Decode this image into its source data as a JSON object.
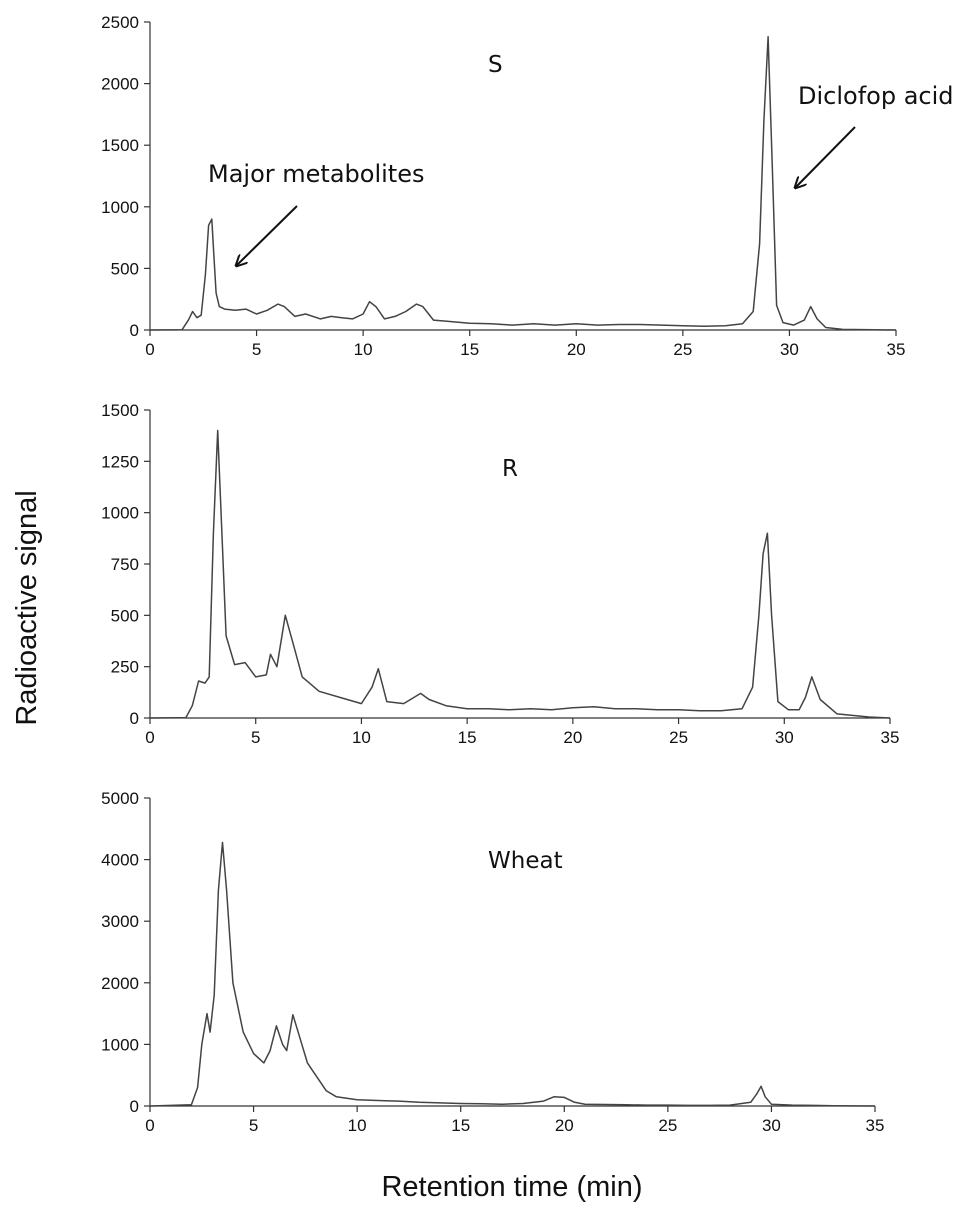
{
  "ylabel": "Radioactive signal",
  "xlabel": "Retention time (min)",
  "chart_data": [
    {
      "type": "line",
      "label": "S",
      "xlim": [
        0,
        35
      ],
      "ylim": [
        0,
        2500
      ],
      "xticks": [
        0,
        5,
        10,
        15,
        20,
        25,
        30,
        35
      ],
      "yticks": [
        0,
        500,
        1000,
        1500,
        2000,
        2500
      ],
      "grid": false,
      "annotations": [
        {
          "text": "Major metabolites",
          "points_to": [
            3.8,
            520
          ]
        },
        {
          "text": "Diclofop acid",
          "points_to": [
            30.0,
            1150
          ]
        }
      ],
      "series": [
        {
          "x": [
            0,
            1.5,
            1.8,
            2.0,
            2.2,
            2.4,
            2.6,
            2.75,
            2.9,
            3.0,
            3.1,
            3.25,
            3.5,
            4,
            4.5,
            5,
            5.5,
            6,
            6.3,
            6.8,
            7.3,
            8,
            8.5,
            9,
            9.5,
            10,
            10.3,
            10.6,
            11,
            11.5,
            12,
            12.5,
            12.8,
            13.3,
            14,
            15,
            16,
            17,
            18,
            19,
            20,
            21,
            22,
            23,
            24,
            25,
            26,
            27,
            27.8,
            28.3,
            28.6,
            28.8,
            29.0,
            29.2,
            29.4,
            29.7,
            30.2,
            30.7,
            31.0,
            31.3,
            31.7,
            32.5,
            34,
            35
          ],
          "y": [
            0,
            2,
            80,
            150,
            100,
            120,
            450,
            850,
            900,
            600,
            300,
            190,
            170,
            160,
            170,
            130,
            160,
            210,
            190,
            110,
            130,
            90,
            110,
            100,
            90,
            130,
            230,
            190,
            90,
            110,
            150,
            210,
            190,
            80,
            70,
            55,
            50,
            40,
            50,
            40,
            50,
            40,
            45,
            45,
            40,
            35,
            30,
            35,
            50,
            150,
            700,
            1700,
            2380,
            1300,
            200,
            60,
            40,
            80,
            190,
            90,
            20,
            5,
            2,
            0
          ]
        }
      ]
    },
    {
      "type": "line",
      "label": "R",
      "xlim": [
        0,
        35
      ],
      "ylim": [
        0,
        1500
      ],
      "xticks": [
        0,
        5,
        10,
        15,
        20,
        25,
        30,
        35
      ],
      "yticks": [
        0,
        250,
        500,
        750,
        1000,
        1250,
        1500
      ],
      "grid": false,
      "series": [
        {
          "x": [
            0,
            1.7,
            2.0,
            2.3,
            2.6,
            2.8,
            3.0,
            3.2,
            3.4,
            3.6,
            4.0,
            4.5,
            5.0,
            5.5,
            5.7,
            6.0,
            6.4,
            6.8,
            7.2,
            8,
            9,
            10,
            10.5,
            10.8,
            11.2,
            12,
            12.8,
            13.2,
            14,
            15,
            16,
            17,
            18,
            19,
            20,
            21,
            22,
            23,
            24,
            25,
            26,
            27,
            28,
            28.5,
            28.8,
            29.0,
            29.2,
            29.4,
            29.7,
            30.2,
            30.7,
            31.0,
            31.3,
            31.7,
            32.5,
            34,
            35
          ],
          "y": [
            0,
            2,
            60,
            180,
            170,
            200,
            900,
            1400,
            900,
            400,
            260,
            270,
            200,
            210,
            310,
            250,
            500,
            350,
            200,
            130,
            100,
            70,
            150,
            240,
            80,
            70,
            120,
            90,
            60,
            45,
            45,
            40,
            45,
            40,
            50,
            55,
            45,
            45,
            40,
            40,
            35,
            35,
            45,
            150,
            500,
            800,
            900,
            500,
            80,
            40,
            40,
            100,
            200,
            90,
            20,
            5,
            0
          ]
        }
      ]
    },
    {
      "type": "line",
      "label": "Wheat",
      "xlim": [
        0,
        35
      ],
      "ylim": [
        0,
        5000
      ],
      "xticks": [
        0,
        5,
        10,
        15,
        20,
        25,
        30,
        35
      ],
      "yticks": [
        0,
        1000,
        2000,
        3000,
        4000,
        5000
      ],
      "grid": false,
      "series": [
        {
          "x": [
            0,
            2.0,
            2.3,
            2.5,
            2.75,
            2.9,
            3.1,
            3.3,
            3.5,
            3.7,
            4.0,
            4.5,
            5.0,
            5.5,
            5.8,
            6.1,
            6.4,
            6.6,
            6.9,
            7.2,
            7.6,
            8.0,
            8.5,
            9,
            10,
            11,
            12,
            13,
            14,
            15,
            16,
            17,
            18,
            19,
            19.5,
            20,
            20.5,
            21,
            22,
            23,
            24,
            25,
            26,
            27,
            28,
            29,
            29.3,
            29.5,
            29.7,
            30,
            31,
            32,
            33,
            35
          ],
          "y": [
            0,
            20,
            300,
            1000,
            1500,
            1200,
            1800,
            3500,
            4280,
            3500,
            2000,
            1200,
            850,
            700,
            900,
            1300,
            1000,
            900,
            1480,
            1150,
            700,
            500,
            250,
            150,
            100,
            90,
            80,
            60,
            50,
            40,
            35,
            30,
            40,
            80,
            150,
            140,
            60,
            30,
            25,
            20,
            15,
            15,
            10,
            10,
            15,
            60,
            200,
            320,
            150,
            30,
            15,
            10,
            5,
            0
          ]
        }
      ]
    }
  ]
}
